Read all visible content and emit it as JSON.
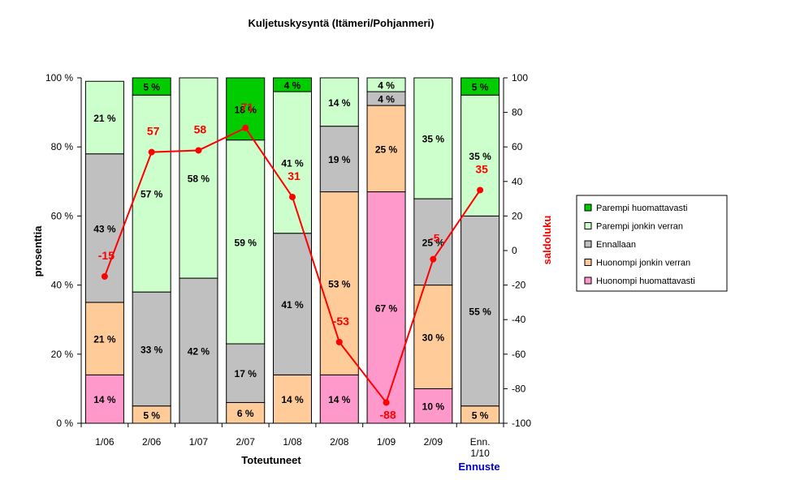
{
  "chart_data": {
    "type": "bar",
    "stacked": true,
    "normalized": true,
    "title": "Kuljetuskysyntä (Itämeri/Pohjanmeri)",
    "xlabel": "Toteutuneet",
    "ylabel": "prosenttia",
    "y2label": "saldoluku",
    "forecast_label": "Ennuste",
    "categories": [
      "1/06",
      "2/06",
      "1/07",
      "2/07",
      "1/08",
      "2/08",
      "1/09",
      "2/09",
      "Enn. 1/10"
    ],
    "ylim": [
      0,
      100
    ],
    "y2lim": [
      -100,
      100
    ],
    "yticks": [
      "0 %",
      "20 %",
      "40 %",
      "60 %",
      "80 %",
      "100 %"
    ],
    "y2ticks": [
      "-100",
      "-80",
      "-60",
      "-40",
      "-20",
      "0",
      "20",
      "40",
      "60",
      "80",
      "100"
    ],
    "series": [
      {
        "name": "Huonompi huomattavasti",
        "color": "#ff99cc",
        "values": [
          14,
          0,
          0,
          0,
          0,
          14,
          67,
          10,
          0
        ]
      },
      {
        "name": "Huonompi jonkin verran",
        "color": "#ffcc99",
        "values": [
          21,
          5,
          0,
          6,
          14,
          53,
          25,
          30,
          5
        ]
      },
      {
        "name": "Ennallaan",
        "color": "#c0c0c0",
        "values": [
          43,
          33,
          42,
          17,
          41,
          19,
          4,
          25,
          55
        ]
      },
      {
        "name": "Parempi jonkin verran",
        "color": "#ccffcc",
        "values": [
          21,
          57,
          58,
          59,
          41,
          14,
          4,
          35,
          35
        ]
      },
      {
        "name": "Parempi huomattavasti",
        "color": "#00cc00",
        "values": [
          0,
          5,
          0,
          18,
          4,
          0,
          0,
          0,
          5
        ]
      }
    ],
    "line": {
      "name": "saldoluku",
      "color": "#ff0000",
      "values": [
        -15,
        57,
        58,
        71,
        31,
        -53,
        -88,
        -5,
        35
      ]
    },
    "legend_position": "right",
    "grid": false
  }
}
